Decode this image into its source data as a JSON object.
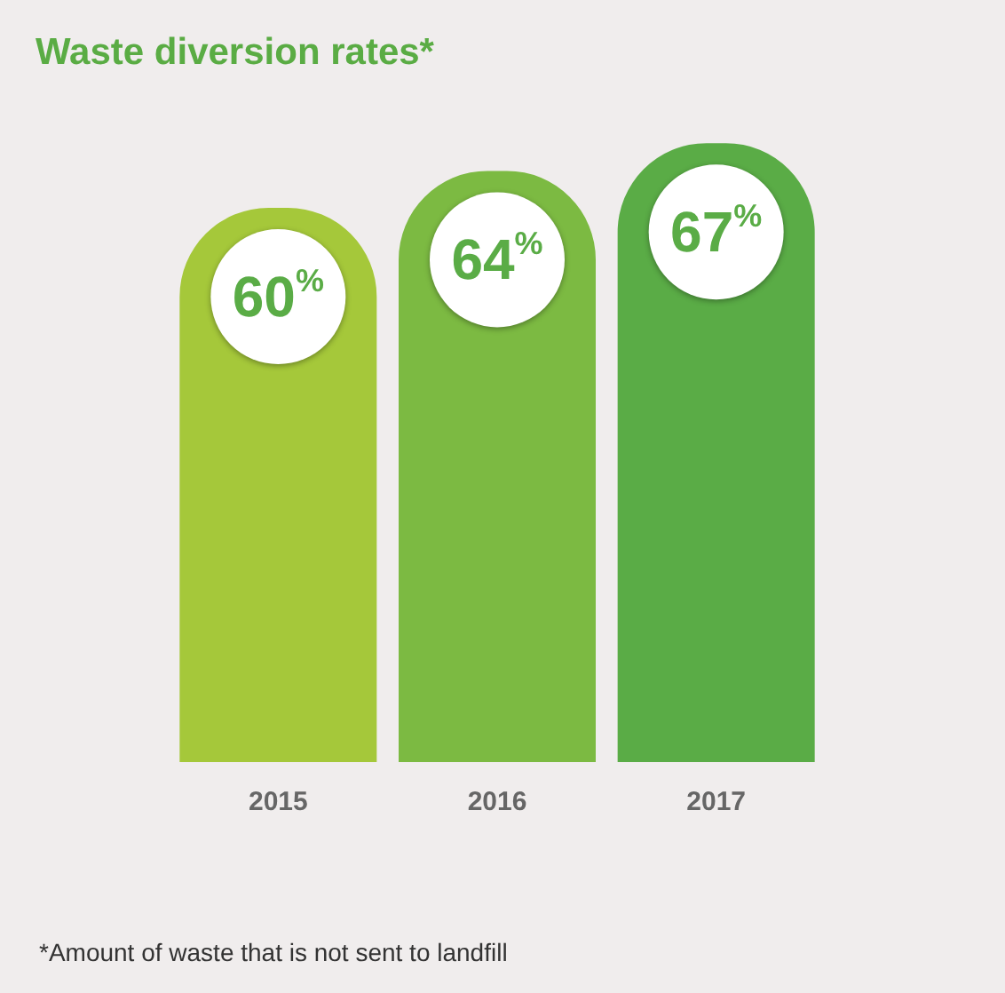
{
  "chart_data": {
    "type": "bar",
    "title": "Waste diversion rates*",
    "categories": [
      "2015",
      "2016",
      "2017"
    ],
    "values": [
      60,
      64,
      67
    ],
    "colors": [
      "#a5c83a",
      "#7cba42",
      "#5aac46"
    ],
    "value_labels": [
      "60%",
      "64%",
      "67%"
    ],
    "tick_labels": "x",
    "grid": false,
    "legend": false,
    "annotations": [
      "*Amount of waste that is not sent to landfill"
    ]
  }
}
